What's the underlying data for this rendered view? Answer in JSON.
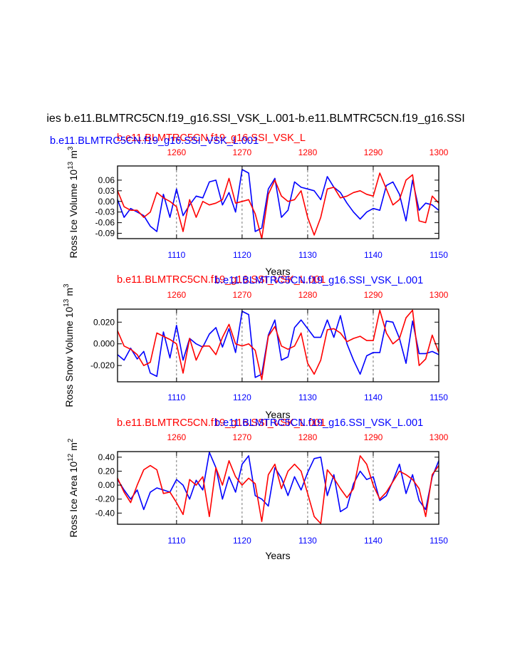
{
  "figure": {
    "main_title": "ies b.e11.BLMTRC5CN.f19_g16.SSI_VSK_L.001-b.e11.BLMTRC5CN.f19_g16.SSI",
    "colors": {
      "blue": "#0000ff",
      "red": "#ff0000",
      "black": "#000000",
      "grid": "#555555"
    }
  },
  "chart_data": [
    {
      "type": "line",
      "ylabel": "Ross Ice Volume 10",
      "ylabel_exp": "13",
      "ylabel_unit": "m",
      "ylabel_unit_exp": "3",
      "xlabel": "Years",
      "ylim": [
        -0.105,
        0.1
      ],
      "yticks": [
        -0.09,
        -0.06,
        -0.03,
        0.0,
        0.03,
        0.06
      ],
      "ytick_labels": [
        "-0.09",
        "-0.06",
        "-0.03",
        "0.00",
        "0.03",
        "0.06"
      ],
      "blue_axis": {
        "label": "b.e11.BLMTRC5CN.f19_g16.SSI_VSK_L.001",
        "range": [
          1101,
          1150
        ],
        "ticks": [
          1110,
          1120,
          1130,
          1140,
          1150
        ],
        "tick_labels": [
          "1110",
          "1120",
          "1130",
          "1140",
          "1150"
        ]
      },
      "red_axis": {
        "label": "b.e11.BLMTRC5CN.f19_g16.SSI_VSK_L",
        "range": [
          1251,
          1300
        ],
        "ticks": [
          1260,
          1270,
          1280,
          1290,
          1300
        ],
        "tick_labels": [
          "1260",
          "1270",
          "1280",
          "1290",
          "1300"
        ]
      },
      "series": [
        {
          "name": "b.e11.BLMTRC5CN.f19_g16.SSI_VSK_L.001",
          "color": "#0000ff",
          "values": [
            0.005,
            -0.045,
            -0.02,
            -0.03,
            -0.04,
            -0.07,
            -0.085,
            0.02,
            -0.045,
            0.035,
            -0.04,
            -0.01,
            0.015,
            0.01,
            0.055,
            0.06,
            -0.01,
            0.025,
            -0.03,
            0.09,
            0.08,
            -0.085,
            -0.075,
            0.035,
            0.065,
            -0.045,
            -0.025,
            0.055,
            0.04,
            0.035,
            0.03,
            0.005,
            0.07,
            0.04,
            0.025,
            -0.005,
            -0.03,
            -0.05,
            -0.03,
            -0.02,
            -0.025,
            0.045,
            0.055,
            0.02,
            -0.055,
            0.06,
            -0.025,
            -0.005,
            -0.01,
            -0.025
          ]
        },
        {
          "name": "b.e11.BLMTRC5CN.f19_g16.SSI_VSK_L",
          "color": "#ff0000",
          "values": [
            0.03,
            -0.015,
            -0.025,
            -0.025,
            -0.045,
            -0.03,
            0.025,
            0.01,
            0.0,
            -0.015,
            -0.085,
            0.005,
            -0.045,
            0.0,
            -0.01,
            -0.005,
            0.005,
            0.065,
            -0.005,
            0.0,
            0.005,
            -0.035,
            -0.105,
            0.02,
            0.06,
            0.015,
            0.0,
            0.005,
            0.03,
            -0.045,
            -0.095,
            -0.045,
            0.035,
            0.04,
            0.01,
            0.015,
            0.025,
            0.03,
            0.02,
            0.015,
            0.08,
            0.035,
            -0.01,
            0.005,
            0.06,
            0.075,
            -0.055,
            -0.06,
            0.015,
            -0.005
          ]
        }
      ]
    },
    {
      "type": "line",
      "ylabel": "Ross Snow Volume 10",
      "ylabel_exp": "13",
      "ylabel_unit": "m",
      "ylabel_unit_exp": "3",
      "xlabel": "Years",
      "ylim": [
        -0.035,
        0.032
      ],
      "yticks": [
        -0.02,
        0.0,
        0.02
      ],
      "ytick_labels": [
        "-0.020",
        "0.000",
        "0.020"
      ],
      "blue_axis": {
        "label": "b.e11.BLMTRC5CN.f19_g16.SSI_VSK_L.001",
        "range": [
          1101,
          1150
        ],
        "ticks": [
          1110,
          1120,
          1130,
          1140,
          1150
        ],
        "tick_labels": [
          "1110",
          "1120",
          "1130",
          "1140",
          "1150"
        ]
      },
      "red_axis": {
        "label": "b.e11.BLMTRC5CN.f19_g16.SSI_VSK_L.001",
        "range": [
          1251,
          1300
        ],
        "ticks": [
          1260,
          1270,
          1280,
          1290,
          1300
        ],
        "tick_labels": [
          "1260",
          "1270",
          "1280",
          "1290",
          "1300"
        ]
      },
      "series": [
        {
          "name": "b.e11.BLMTRC5CN.f19_g16.SSI_VSK_L.001",
          "color": "#0000ff",
          "values": [
            -0.01,
            -0.015,
            -0.004,
            -0.014,
            -0.007,
            -0.027,
            -0.03,
            0.011,
            -0.013,
            0.017,
            -0.015,
            0.005,
            0.0,
            -0.003,
            0.009,
            0.015,
            -0.003,
            0.014,
            -0.008,
            0.03,
            0.027,
            -0.031,
            -0.028,
            0.008,
            0.022,
            -0.015,
            -0.012,
            0.015,
            0.022,
            0.014,
            0.006,
            0.006,
            0.022,
            0.006,
            0.026,
            0.0,
            -0.015,
            -0.028,
            -0.011,
            -0.008,
            -0.008,
            0.021,
            0.02,
            0.005,
            -0.018,
            0.021,
            -0.009,
            -0.009,
            -0.007,
            -0.01
          ]
        },
        {
          "name": "b.e11.BLMTRC5CN.f19_g16.SSI_VSK_L",
          "color": "#ff0000",
          "values": [
            0.012,
            -0.002,
            -0.005,
            -0.01,
            -0.02,
            -0.017,
            0.01,
            0.007,
            0.004,
            0.0,
            -0.027,
            0.005,
            -0.015,
            -0.002,
            -0.002,
            -0.01,
            0.006,
            0.018,
            0.0,
            -0.002,
            0.0,
            -0.006,
            -0.033,
            0.007,
            0.016,
            -0.002,
            -0.005,
            -0.002,
            0.01,
            -0.018,
            -0.028,
            -0.015,
            0.013,
            0.014,
            0.01,
            0.002,
            0.005,
            0.007,
            0.003,
            0.003,
            0.031,
            0.01,
            0.0,
            0.005,
            0.024,
            0.031,
            -0.02,
            -0.014,
            0.008,
            -0.008
          ]
        }
      ]
    },
    {
      "type": "line",
      "ylabel": "Ross Ice Area 10",
      "ylabel_exp": "12",
      "ylabel_unit": "m",
      "ylabel_unit_exp": "2",
      "xlabel": "Years",
      "ylim": [
        -0.56,
        0.48
      ],
      "yticks": [
        -0.4,
        -0.2,
        0.0,
        0.2,
        0.4
      ],
      "ytick_labels": [
        "-0.40",
        "-0.20",
        "0.00",
        "0.20",
        "0.40"
      ],
      "blue_axis": {
        "label": "b.e11.BLMTRC5CN.f19_g16.SSI_VSK_L.001",
        "range": [
          1101,
          1150
        ],
        "ticks": [
          1110,
          1120,
          1130,
          1140,
          1150
        ],
        "tick_labels": [
          "1110",
          "1120",
          "1130",
          "1140",
          "1150"
        ]
      },
      "red_axis": {
        "label": "b.e11.BLMTRC5CN.f19_g16.SSI_VSK_L.001",
        "range": [
          1251,
          1300
        ],
        "ticks": [
          1260,
          1270,
          1280,
          1290,
          1300
        ],
        "tick_labels": [
          "1260",
          "1270",
          "1280",
          "1290",
          "1300"
        ]
      },
      "series": [
        {
          "name": "b.e11.BLMTRC5CN.f19_g16.SSI_VSK_L.001",
          "color": "#0000ff",
          "values": [
            0.08,
            -0.07,
            -0.2,
            -0.07,
            -0.35,
            -0.1,
            -0.04,
            -0.07,
            -0.1,
            0.08,
            0.0,
            -0.2,
            0.07,
            -0.07,
            0.47,
            0.25,
            -0.2,
            0.12,
            -0.1,
            0.3,
            0.42,
            -0.15,
            -0.2,
            -0.3,
            0.25,
            0.1,
            -0.15,
            0.12,
            -0.07,
            0.18,
            0.38,
            0.4,
            -0.15,
            0.15,
            -0.38,
            -0.32,
            0.02,
            0.2,
            0.08,
            0.12,
            -0.22,
            -0.15,
            0.06,
            0.3,
            -0.12,
            0.15,
            -0.22,
            -0.35,
            0.12,
            0.35
          ]
        },
        {
          "name": "b.e11.BLMTRC5CN.f19_g16.SSI_VSK_L",
          "color": "#ff0000",
          "values": [
            0.1,
            -0.1,
            -0.25,
            0.0,
            0.22,
            0.28,
            0.22,
            -0.12,
            -0.1,
            -0.25,
            -0.42,
            0.08,
            0.0,
            0.12,
            -0.45,
            0.25,
            0.0,
            0.35,
            0.12,
            0.0,
            0.1,
            0.02,
            -0.52,
            0.15,
            0.3,
            -0.05,
            0.2,
            0.3,
            0.2,
            -0.12,
            -0.45,
            -0.55,
            0.22,
            0.1,
            -0.05,
            -0.18,
            -0.05,
            0.42,
            0.3,
            0.0,
            -0.2,
            -0.1,
            0.05,
            0.2,
            0.15,
            0.08,
            -0.05,
            -0.45,
            0.15,
            0.28
          ]
        }
      ]
    }
  ]
}
